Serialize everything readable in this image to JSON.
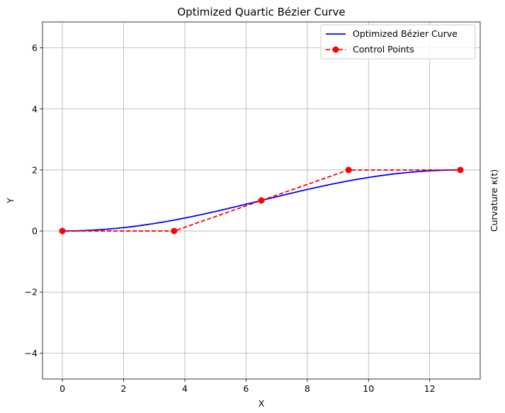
{
  "chart_data": {
    "type": "line",
    "title": "Optimized Quartic Bézier Curve",
    "xlabel": "X",
    "ylabel": "Y",
    "ylabel_right": "Curvature κ(t)",
    "xlim": [
      -0.65,
      13.65
    ],
    "ylim": [
      -4.85,
      6.85
    ],
    "xticks": [
      0,
      2,
      4,
      6,
      8,
      10,
      12
    ],
    "yticks": [
      -4,
      -2,
      0,
      2,
      4,
      6
    ],
    "grid": true,
    "legend_position": "top-right",
    "control_points": {
      "x": [
        0,
        3.65,
        6.5,
        9.35,
        13
      ],
      "y": [
        0,
        0,
        1,
        2,
        2
      ]
    },
    "series": [
      {
        "name": "Optimized Bézier Curve",
        "color": "#0000ff",
        "style": "solid",
        "kind": "bezier-from-control-points"
      },
      {
        "name": "Control Points",
        "color": "#ff0000",
        "style": "dashed",
        "marker": "circle"
      }
    ]
  }
}
